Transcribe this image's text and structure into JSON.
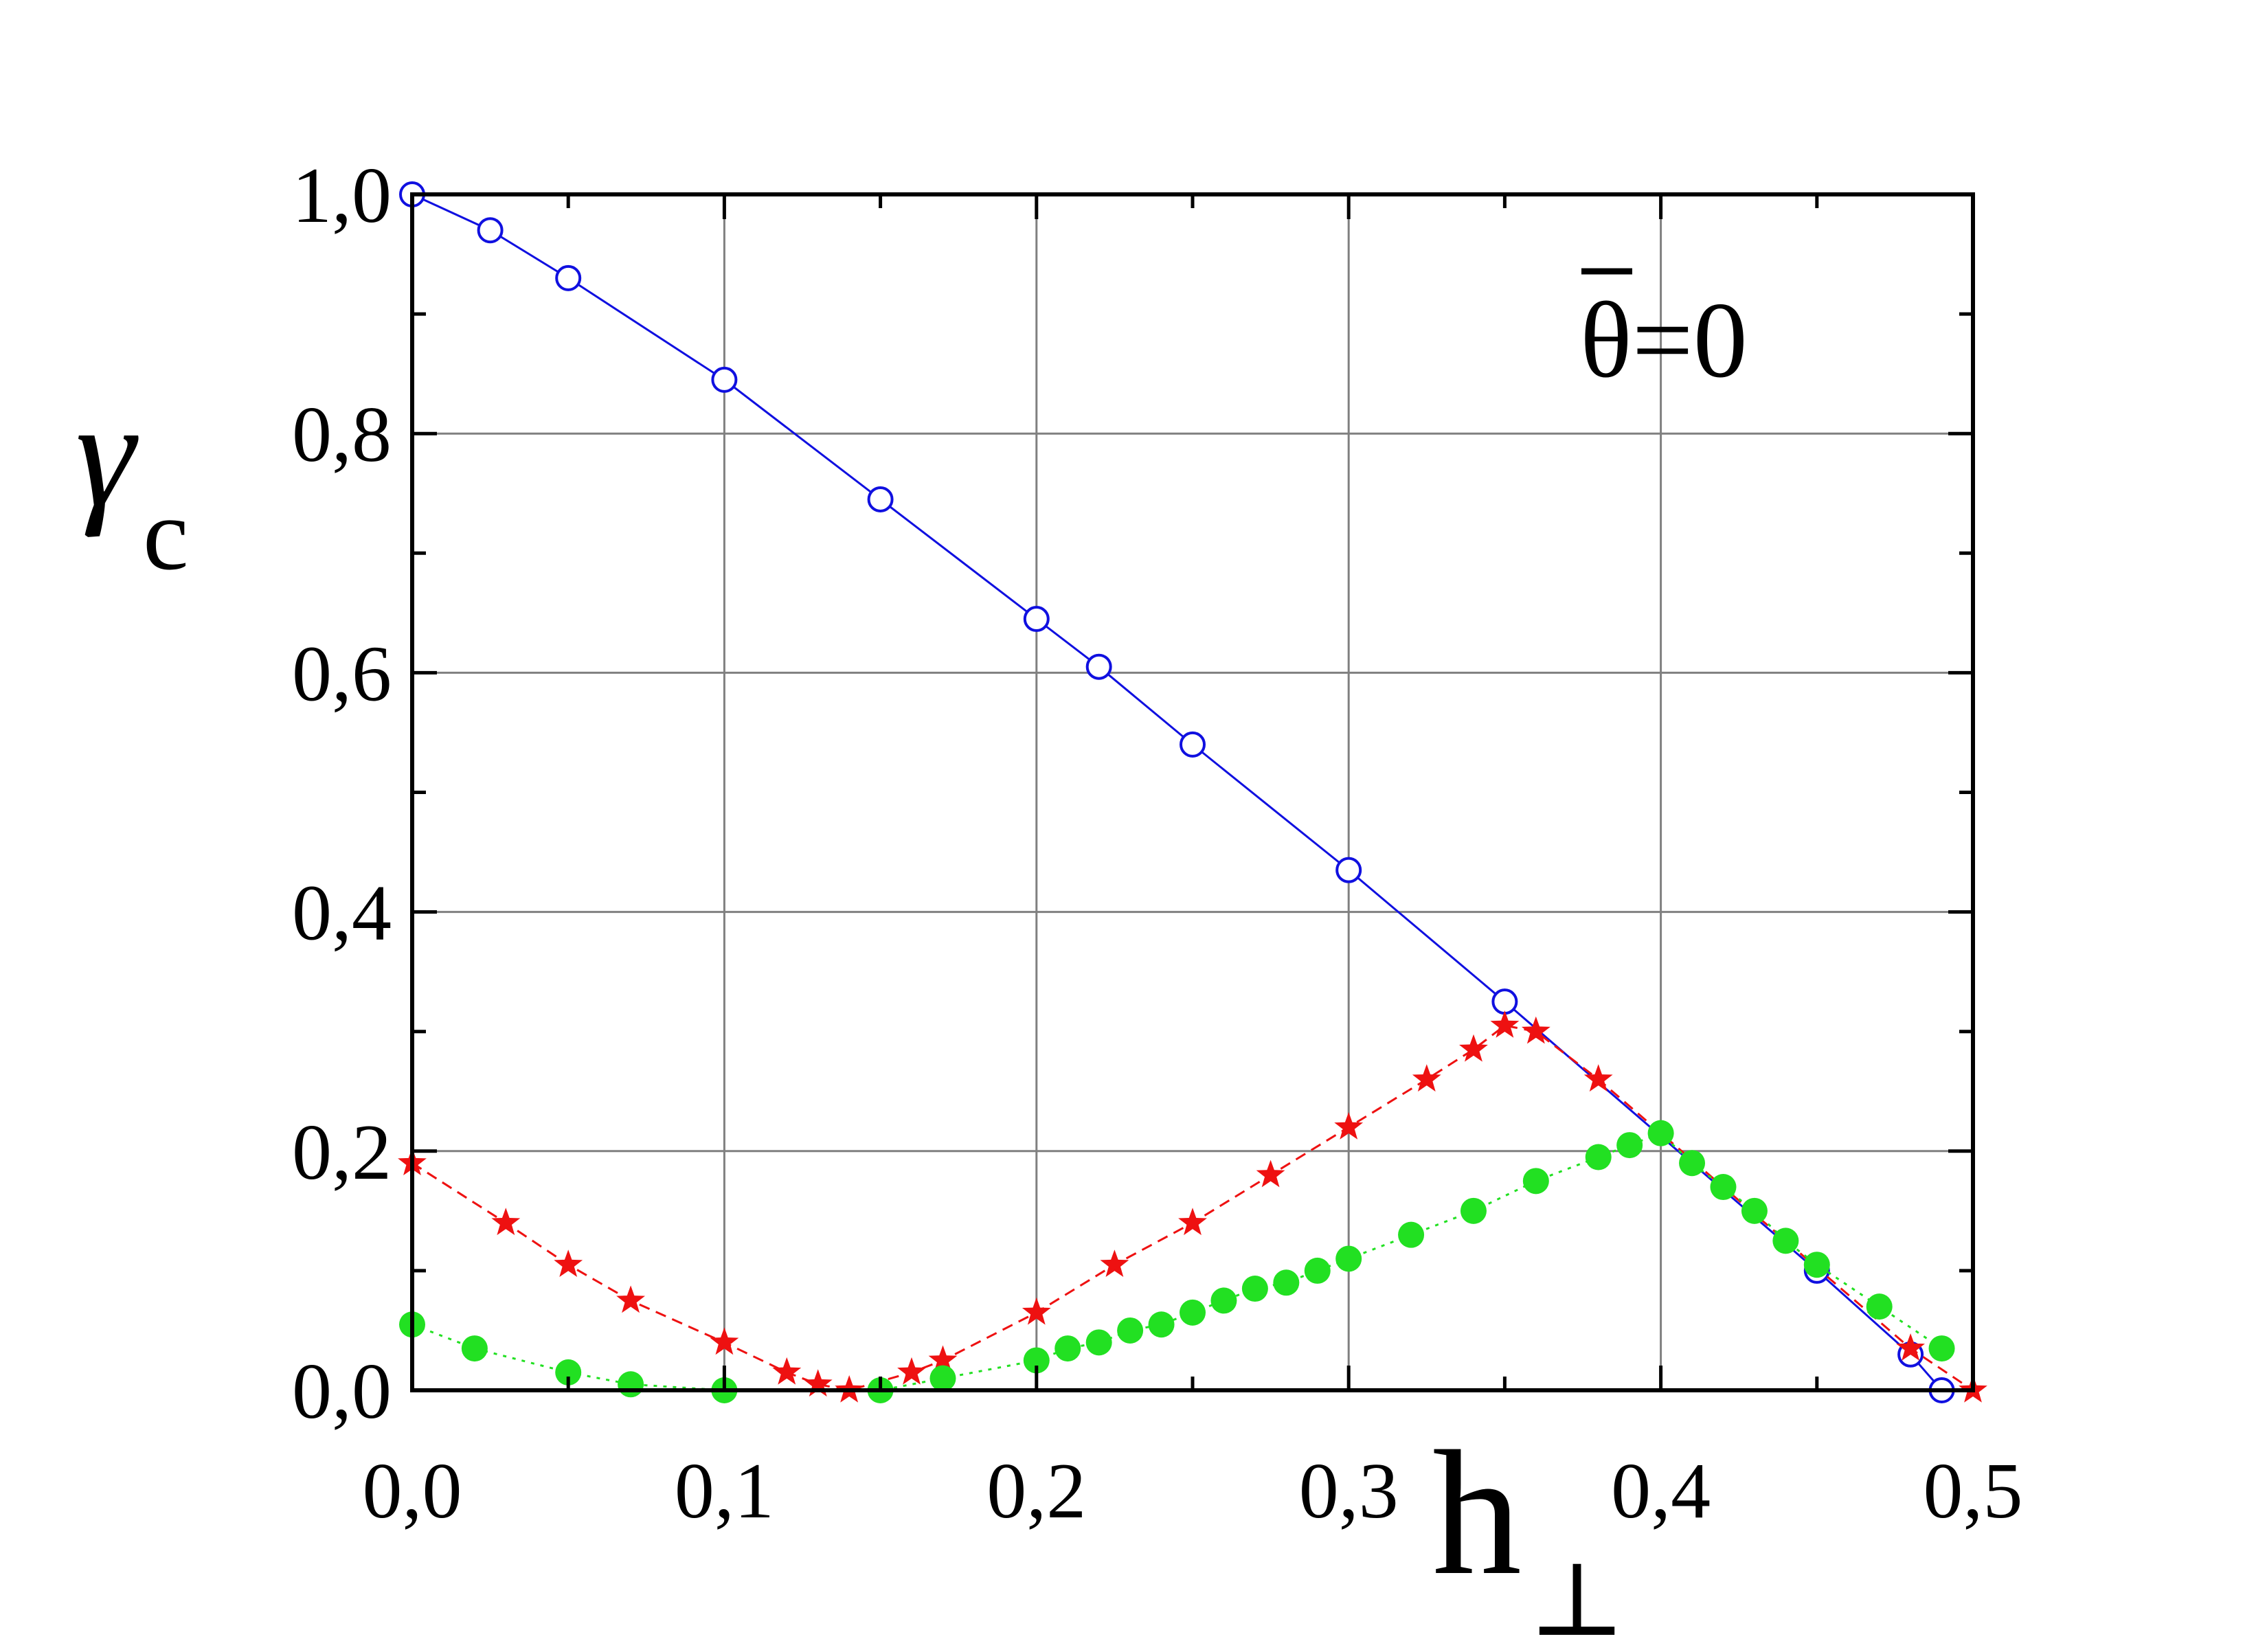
{
  "chart_data": {
    "type": "scatter",
    "title": "",
    "annotation": "θ=0",
    "xlabel": {
      "main": "h",
      "sub": "⊥"
    },
    "ylabel": {
      "main": "γ",
      "sub": "c"
    },
    "xlim": [
      0.0,
      0.5
    ],
    "ylim": [
      0.0,
      1.0
    ],
    "xticks": [
      0.0,
      0.1,
      0.2,
      0.3,
      0.4,
      0.5
    ],
    "xtick_labels": [
      "0,0",
      "0,1",
      "0,2",
      "0,3",
      "0,4",
      "0,5"
    ],
    "yticks": [
      0.0,
      0.2,
      0.4,
      0.6,
      0.8,
      1.0
    ],
    "ytick_labels": [
      "0,0",
      "0,2",
      "0,4",
      "0,6",
      "0,8",
      "1,0"
    ],
    "grid": true,
    "series": [
      {
        "marker": "open-circle",
        "line": "solid",
        "color": "#1010e0",
        "x": [
          0.0,
          0.025,
          0.05,
          0.1,
          0.15,
          0.2,
          0.22,
          0.25,
          0.3,
          0.35,
          0.45,
          0.48,
          0.49
        ],
        "y": [
          1.0,
          0.97,
          0.93,
          0.845,
          0.745,
          0.645,
          0.605,
          0.54,
          0.435,
          0.325,
          0.1,
          0.03,
          0.0
        ]
      },
      {
        "marker": "star",
        "line": "dashed",
        "color": "#ee1111",
        "x": [
          0.0,
          0.03,
          0.05,
          0.07,
          0.1,
          0.12,
          0.13,
          0.14,
          0.16,
          0.17,
          0.2,
          0.225,
          0.25,
          0.275,
          0.3,
          0.325,
          0.34,
          0.35,
          0.36,
          0.38,
          0.48,
          0.5
        ],
        "y": [
          0.19,
          0.14,
          0.105,
          0.075,
          0.04,
          0.015,
          0.005,
          0.0,
          0.015,
          0.025,
          0.065,
          0.105,
          0.14,
          0.18,
          0.22,
          0.26,
          0.285,
          0.305,
          0.3,
          0.26,
          0.035,
          0.0
        ]
      },
      {
        "marker": "filled-circle",
        "line": "dotted",
        "color": "#22e022",
        "x": [
          0.0,
          0.02,
          0.05,
          0.07,
          0.1,
          0.15,
          0.17,
          0.2,
          0.21,
          0.22,
          0.23,
          0.24,
          0.25,
          0.26,
          0.27,
          0.28,
          0.29,
          0.3,
          0.32,
          0.34,
          0.36,
          0.38,
          0.39,
          0.4,
          0.41,
          0.42,
          0.43,
          0.44,
          0.45,
          0.47,
          0.49
        ],
        "y": [
          0.055,
          0.035,
          0.015,
          0.005,
          0.0,
          0.0,
          0.01,
          0.025,
          0.035,
          0.04,
          0.05,
          0.055,
          0.065,
          0.075,
          0.085,
          0.09,
          0.1,
          0.11,
          0.13,
          0.15,
          0.175,
          0.195,
          0.205,
          0.215,
          0.19,
          0.17,
          0.15,
          0.125,
          0.105,
          0.07,
          0.035
        ]
      }
    ]
  }
}
